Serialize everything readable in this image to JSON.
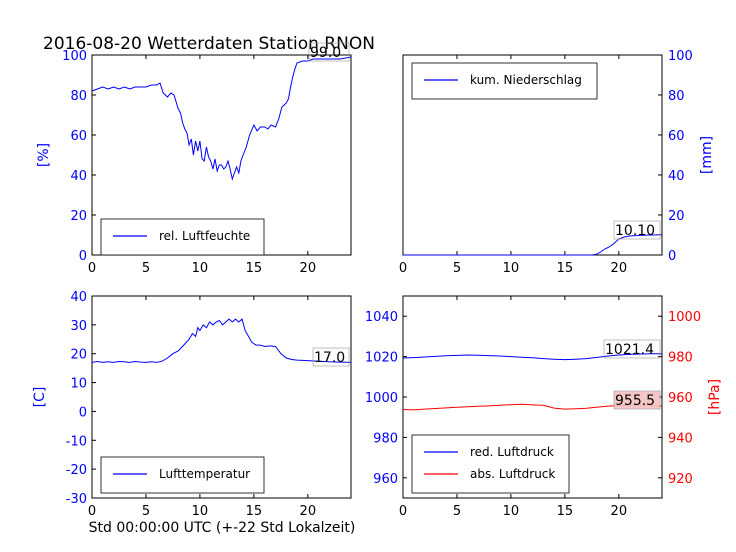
{
  "title": "2016-08-20 Wetterdaten Station RNON",
  "xlabel": "Std 00:00:00 UTC (+-22 Std Lokalzeit)",
  "colors": {
    "blue": "#0000ff",
    "red": "#ff0000",
    "black": "#000000",
    "annot_red_bg": "#f4c2c2"
  },
  "chart_data": [
    {
      "id": "humidity",
      "type": "line",
      "ylabel": "[%]",
      "ylim": [
        0,
        100
      ],
      "xlim": [
        0,
        24
      ],
      "yticks": [
        0,
        20,
        40,
        60,
        80,
        100
      ],
      "xticks": [
        0,
        5,
        10,
        15,
        20
      ],
      "legend_position": "lower-left",
      "annotation": "99.0",
      "series": [
        {
          "name": "rel. Luftfeuchte",
          "color": "blue",
          "x": [
            0,
            0.5,
            1,
            1.5,
            2,
            2.5,
            3,
            3.5,
            4,
            4.5,
            5,
            5.5,
            6,
            6.3,
            6.6,
            7,
            7.3,
            7.6,
            8,
            8.2,
            8.4,
            8.6,
            8.8,
            9,
            9.2,
            9.4,
            9.6,
            9.8,
            10,
            10.2,
            10.4,
            10.6,
            10.8,
            11,
            11.2,
            11.4,
            11.6,
            11.8,
            12,
            12.2,
            12.4,
            12.6,
            12.8,
            13,
            13.2,
            13.4,
            13.6,
            13.8,
            14,
            14.3,
            14.6,
            15,
            15.3,
            15.6,
            16,
            16.3,
            16.6,
            17,
            17.3,
            17.6,
            17.8,
            18,
            18.2,
            18.4,
            18.6,
            18.8,
            19,
            19.5,
            20,
            20.5,
            21,
            22,
            23,
            24
          ],
          "y": [
            82,
            83,
            84,
            83,
            84,
            83,
            84,
            83,
            84,
            84,
            84,
            85,
            85,
            86,
            81,
            79,
            81,
            80,
            73,
            71,
            66,
            63,
            61,
            55,
            58,
            50,
            57,
            52,
            57,
            48,
            47,
            54,
            49,
            47,
            43,
            48,
            42,
            45,
            45,
            43,
            44,
            47,
            43,
            38,
            41,
            44,
            41,
            47,
            50,
            54,
            60,
            65,
            62,
            64,
            64,
            63,
            65,
            64,
            68,
            74,
            75,
            76,
            78,
            84,
            89,
            93,
            96,
            97,
            97,
            98,
            98,
            98,
            98,
            99
          ]
        }
      ]
    },
    {
      "id": "precip",
      "type": "line",
      "ylabel": "[mm]",
      "ylim": [
        0,
        100
      ],
      "xlim": [
        0,
        24
      ],
      "yticks": [
        0,
        20,
        40,
        60,
        80,
        100
      ],
      "xticks": [
        0,
        5,
        10,
        15,
        20
      ],
      "legend_position": "upper-left",
      "annotation": "10.10",
      "series": [
        {
          "name": "kum. Niederschlag",
          "color": "blue",
          "x": [
            0,
            17.5,
            17.9,
            18.3,
            18.7,
            19.1,
            19.5,
            20,
            20.5,
            21,
            22,
            23,
            24
          ],
          "y": [
            0,
            0,
            0.3,
            1.5,
            3,
            4,
            5.5,
            8,
            9,
            9.5,
            9.8,
            10,
            10.1
          ]
        }
      ]
    },
    {
      "id": "temperature",
      "type": "line",
      "ylabel": "[C]",
      "ylim": [
        -30,
        40
      ],
      "xlim": [
        0,
        24
      ],
      "yticks": [
        -30,
        -20,
        -10,
        0,
        10,
        20,
        30,
        40
      ],
      "xticks": [
        0,
        5,
        10,
        15,
        20
      ],
      "legend_position": "lower-left",
      "annotation": "17.0",
      "series": [
        {
          "name": "Lufttemperatur",
          "color": "blue",
          "x": [
            0,
            0.5,
            1,
            1.5,
            2,
            2.5,
            3,
            3.5,
            4,
            4.5,
            5,
            5.5,
            6,
            6.5,
            7,
            7.5,
            8,
            8.5,
            9,
            9.3,
            9.6,
            9.8,
            10,
            10.3,
            10.6,
            10.9,
            11.2,
            11.5,
            11.8,
            12.1,
            12.4,
            12.7,
            13,
            13.3,
            13.6,
            13.9,
            14.2,
            14.5,
            14.8,
            15.2,
            15.6,
            16,
            16.5,
            17,
            17.5,
            18,
            18.5,
            19,
            20,
            21,
            22,
            23,
            24
          ],
          "y": [
            17,
            17.3,
            17,
            17.2,
            17,
            17.3,
            17.2,
            17,
            17.3,
            17.1,
            17,
            17.2,
            17,
            17.4,
            18.5,
            20,
            21,
            23,
            25,
            27,
            26,
            29,
            28,
            30,
            29,
            31,
            30,
            31,
            31.5,
            30,
            31,
            32,
            31,
            32,
            31,
            32,
            28,
            26,
            24,
            23,
            23,
            22.5,
            22.7,
            22.5,
            20,
            18.5,
            18,
            17.8,
            17.6,
            17.4,
            17.2,
            17.1,
            17
          ]
        }
      ]
    },
    {
      "id": "pressure",
      "type": "line",
      "ylabel": "[hPa]",
      "xlim": [
        0,
        24
      ],
      "xticks": [
        0,
        5,
        10,
        15,
        20
      ],
      "ylim_left": [
        950,
        1050
      ],
      "yticks_left": [
        960,
        980,
        1000,
        1020,
        1040
      ],
      "ylim_right": [
        910,
        1010
      ],
      "yticks_right": [
        920,
        940,
        960,
        980,
        1000
      ],
      "legend_position": "lower-left",
      "annotations": [
        "1021.4",
        "955.5"
      ],
      "series": [
        {
          "name": "red. Luftdruck",
          "color": "blue",
          "axis": "left",
          "x": [
            0,
            1,
            2,
            3,
            4,
            5,
            6,
            7,
            8,
            9,
            10,
            11,
            12,
            13,
            14,
            15,
            16,
            17,
            18,
            19,
            20,
            21,
            22,
            23,
            24
          ],
          "y": [
            1019.3,
            1019.5,
            1019.8,
            1020.1,
            1020.4,
            1020.6,
            1020.8,
            1020.7,
            1020.5,
            1020.3,
            1020.0,
            1019.7,
            1019.4,
            1019.0,
            1018.7,
            1018.5,
            1018.7,
            1019.0,
            1019.6,
            1020.3,
            1020.8,
            1021.1,
            1021.3,
            1021.4,
            1021.4
          ]
        },
        {
          "name": "abs. Luftdruck",
          "color": "red",
          "axis": "right",
          "x": [
            0,
            1,
            2,
            3,
            4,
            5,
            6,
            7,
            8,
            9,
            10,
            11,
            12,
            13,
            14,
            15,
            16,
            17,
            18,
            19,
            20,
            21,
            22,
            23,
            24
          ],
          "y": [
            953.8,
            953.6,
            954.0,
            954.3,
            954.6,
            954.9,
            955.2,
            955.4,
            955.6,
            955.9,
            956.2,
            956.4,
            956.1,
            955.9,
            954.5,
            954.0,
            954.2,
            954.4,
            955.0,
            955.5,
            955.8,
            956.0,
            955.8,
            955.6,
            955.5
          ]
        }
      ]
    }
  ]
}
